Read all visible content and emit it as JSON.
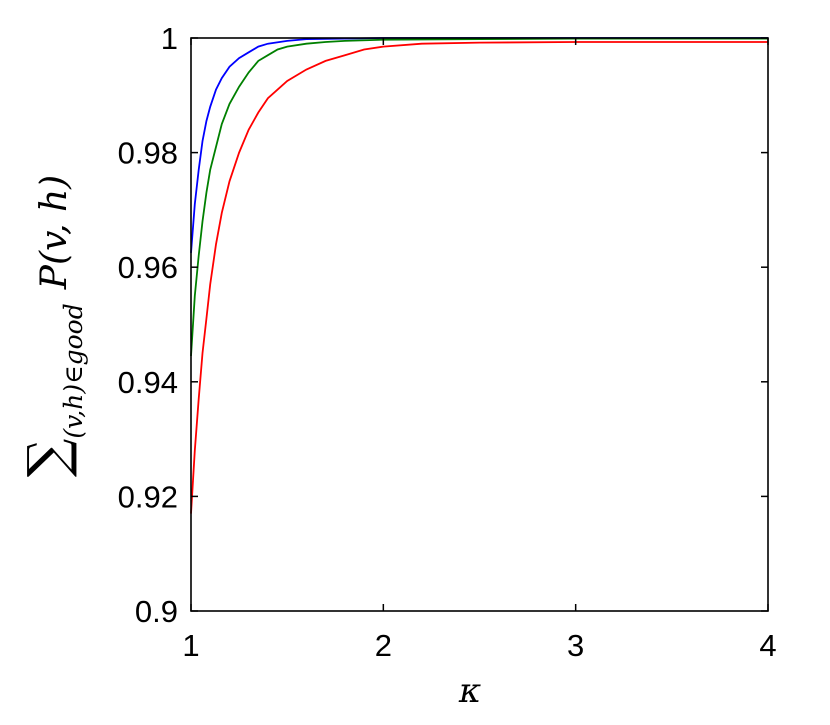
{
  "chart_data": {
    "type": "line",
    "xlabel": "κ",
    "ylabel": {
      "sum": "∑",
      "subscript": "(v,h)∈good",
      "term": "P(v, h)"
    },
    "xlim": [
      1,
      4
    ],
    "ylim": [
      0.9,
      1
    ],
    "xticks": [
      1,
      2,
      3,
      4
    ],
    "xtick_labels": [
      "1",
      "2",
      "3",
      "4"
    ],
    "yticks": [
      0.9,
      0.92,
      0.94,
      0.96,
      0.98,
      1
    ],
    "ytick_labels": [
      "0.9",
      "0.92",
      "0.94",
      "0.96",
      "0.98",
      "1"
    ],
    "grid": false,
    "series": [
      {
        "color": "#0000ff",
        "points": [
          [
            1.0,
            0.9625
          ],
          [
            1.02,
            0.971
          ],
          [
            1.04,
            0.977
          ],
          [
            1.06,
            0.982
          ],
          [
            1.08,
            0.9855
          ],
          [
            1.1,
            0.988
          ],
          [
            1.13,
            0.991
          ],
          [
            1.16,
            0.993
          ],
          [
            1.2,
            0.995
          ],
          [
            1.25,
            0.9965
          ],
          [
            1.3,
            0.9975
          ],
          [
            1.35,
            0.9985
          ],
          [
            1.4,
            0.999
          ],
          [
            1.5,
            0.9995
          ],
          [
            1.6,
            0.9998
          ],
          [
            1.8,
            0.9999
          ],
          [
            2.0,
            1.0
          ],
          [
            4.0,
            1.0
          ]
        ]
      },
      {
        "color": "#008000",
        "points": [
          [
            1.0,
            0.9445
          ],
          [
            1.02,
            0.955
          ],
          [
            1.04,
            0.962
          ],
          [
            1.06,
            0.968
          ],
          [
            1.08,
            0.973
          ],
          [
            1.1,
            0.977
          ],
          [
            1.13,
            0.981
          ],
          [
            1.16,
            0.985
          ],
          [
            1.2,
            0.9885
          ],
          [
            1.25,
            0.9915
          ],
          [
            1.3,
            0.994
          ],
          [
            1.35,
            0.996
          ],
          [
            1.4,
            0.997
          ],
          [
            1.45,
            0.998
          ],
          [
            1.5,
            0.9985
          ],
          [
            1.6,
            0.999
          ],
          [
            1.7,
            0.9993
          ],
          [
            1.8,
            0.9995
          ],
          [
            2.0,
            0.9997
          ],
          [
            2.5,
            0.9998
          ],
          [
            3.0,
            0.9999
          ],
          [
            4.0,
            0.9999
          ]
        ]
      },
      {
        "color": "#ff0000",
        "points": [
          [
            1.0,
            0.917
          ],
          [
            1.02,
            0.928
          ],
          [
            1.04,
            0.937
          ],
          [
            1.06,
            0.945
          ],
          [
            1.08,
            0.951
          ],
          [
            1.1,
            0.957
          ],
          [
            1.13,
            0.964
          ],
          [
            1.16,
            0.9695
          ],
          [
            1.2,
            0.975
          ],
          [
            1.25,
            0.98
          ],
          [
            1.3,
            0.984
          ],
          [
            1.35,
            0.987
          ],
          [
            1.4,
            0.9895
          ],
          [
            1.45,
            0.991
          ],
          [
            1.5,
            0.9925
          ],
          [
            1.6,
            0.9945
          ],
          [
            1.7,
            0.996
          ],
          [
            1.8,
            0.997
          ],
          [
            1.9,
            0.998
          ],
          [
            2.0,
            0.9985
          ],
          [
            2.2,
            0.999
          ],
          [
            2.5,
            0.9992
          ],
          [
            3.0,
            0.9993
          ],
          [
            4.0,
            0.9993
          ]
        ]
      }
    ]
  }
}
